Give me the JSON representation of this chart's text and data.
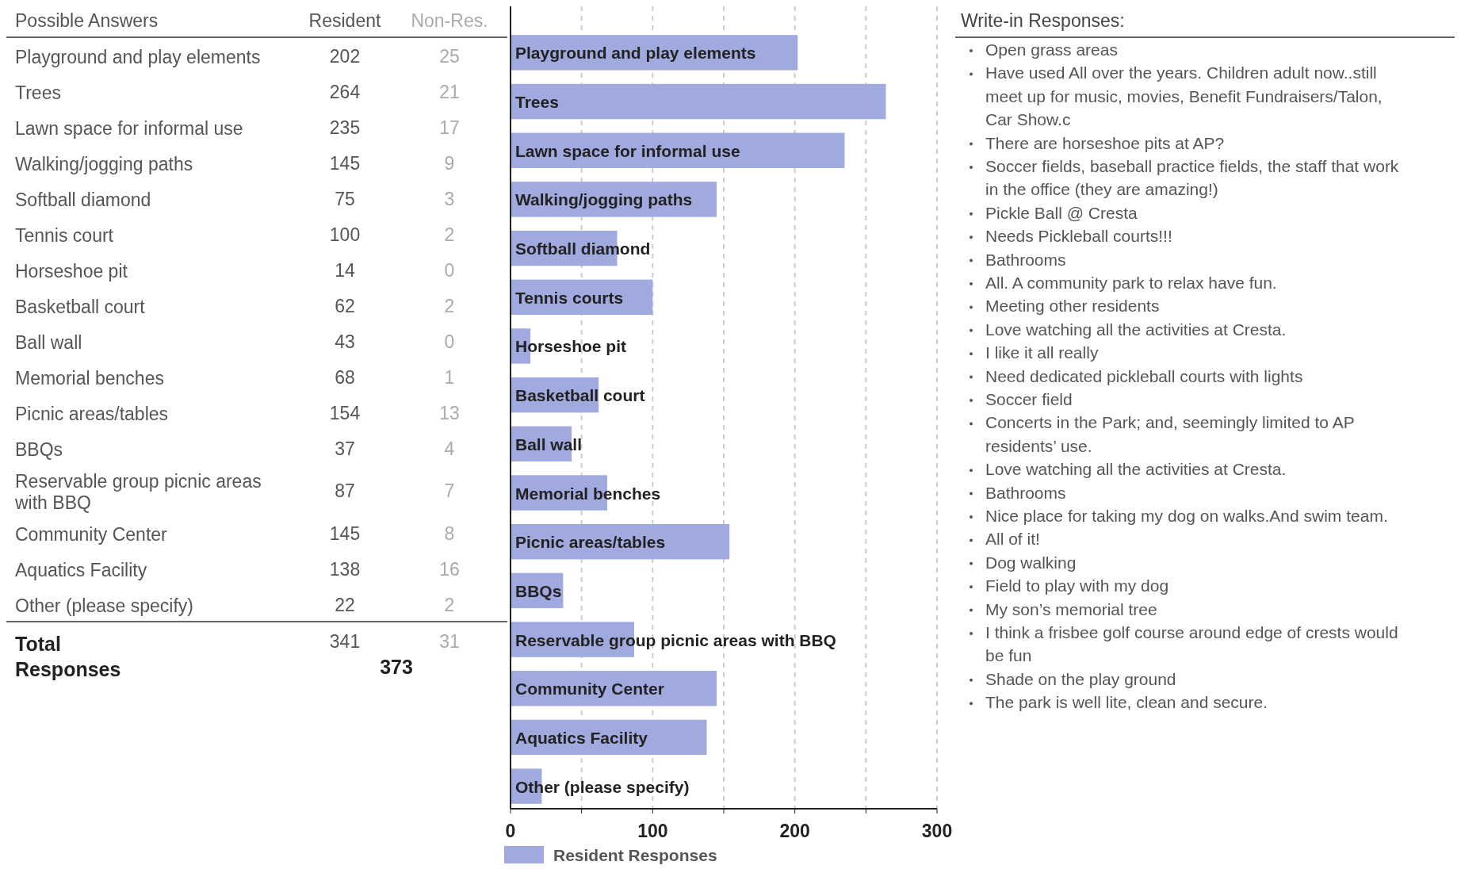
{
  "chart_data": [
    {
      "type": "other",
      "title": "Possible Answers",
      "categories": [
        "Playground and play elements",
        "Trees",
        "Lawn space for informal use",
        "Walking/jogging paths",
        "Softball diamond",
        "Tennis court",
        "Horseshoe pit",
        "Basketball court",
        "Ball wall",
        "Memorial benches",
        "Picnic areas/tables",
        "BBQs",
        "Reservable group picnic areas with BBQ",
        "Community Center",
        "Aquatics Facility",
        "Other (please specify)"
      ],
      "series": [
        {
          "name": "Resident",
          "values": [
            202,
            264,
            235,
            145,
            75,
            100,
            14,
            62,
            43,
            68,
            154,
            37,
            87,
            145,
            138,
            22
          ]
        },
        {
          "name": "Non-Res.",
          "values": [
            25,
            21,
            17,
            9,
            3,
            2,
            0,
            2,
            0,
            1,
            13,
            4,
            7,
            8,
            16,
            2
          ]
        }
      ],
      "data_labels": true,
      "annotations": [
        "Total Responses",
        "341",
        "31",
        "373"
      ]
    },
    {
      "type": "bar",
      "orientation": "horizontal",
      "categories": [
        "Playground and play elements",
        "Trees",
        "Lawn space for informal use",
        "Walking/jogging paths",
        "Softball diamond",
        "Tennis courts",
        "Horseshoe pit",
        "Basketball court",
        "Ball wall",
        "Memorial benches",
        "Picnic areas/tables",
        "BBQs",
        "Reservable group picnic areas with BBQ",
        "Community Center",
        "Aquatics Facility",
        "Other (please specify)"
      ],
      "series": [
        {
          "name": "Resident Responses",
          "color": "#a0aade",
          "values": [
            202,
            264,
            235,
            145,
            75,
            100,
            14,
            62,
            43,
            68,
            154,
            37,
            87,
            145,
            138,
            22
          ]
        }
      ],
      "xlim": [
        0,
        300
      ],
      "xticks": [
        0,
        {
          "value": 50,
          "label": null
        },
        100,
        {
          "value": 150,
          "label": null
        },
        200,
        {
          "value": 250,
          "label": null
        },
        300
      ],
      "grid": "x",
      "legend": "bottom"
    },
    {
      "type": "other",
      "title": "Write-in Responses:",
      "annotations": [
        "Open grass areas",
        "Have used All over the years. Children adult now..still meet up for music, movies, Benefit Fundraisers/Talon, Car Show.c",
        "There are horseshoe pits at AP?",
        "Soccer fields, baseball practice fields, the staff that work in the office (they are amazing!)",
        "Pickle Ball @ Cresta",
        "Needs Pickleball courts!!!",
        "Bathrooms",
        "All. A community park to relax have fun.",
        "Meeting other residents",
        "Love watching all the activities at Cresta.",
        "I like it all really",
        "Need dedicated pickleball courts with lights",
        "Soccer field",
        "Concerts in the Park; and, seemingly limited to AP residents’ use.",
        "Love watching all the activities at Cresta.",
        "Bathrooms",
        "Nice place for taking my dog on walks.And swim team.",
        "All of it!",
        "Dog walking",
        "Field to play with my dog",
        "My son’s memorial tree",
        "I think a frisbee golf course around edge of crests would be fun",
        "Shade on the play ground",
        "The park is well lite, clean and secure."
      ]
    }
  ]
}
